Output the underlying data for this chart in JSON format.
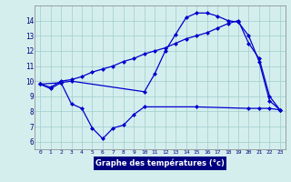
{
  "title": "Graphe des températures (°c)",
  "bg_color": "#d4eeee",
  "line_color": "#0000cc",
  "grid_color": "#a0cccc",
  "ylim_min": 5.5,
  "ylim_max": 15.0,
  "xlim_min": -0.5,
  "xlim_max": 23.5,
  "yticks": [
    6,
    7,
    8,
    9,
    10,
    11,
    12,
    13,
    14
  ],
  "xticks": [
    0,
    1,
    2,
    3,
    4,
    5,
    6,
    7,
    8,
    9,
    10,
    11,
    12,
    13,
    14,
    15,
    16,
    17,
    18,
    19,
    20,
    21,
    22,
    23
  ],
  "line1_x": [
    0,
    2,
    3,
    10,
    11,
    12,
    13,
    14,
    15,
    16,
    17,
    18,
    19,
    20,
    21,
    22,
    23
  ],
  "line1_y": [
    9.8,
    9.9,
    10.0,
    9.3,
    10.5,
    12.0,
    13.1,
    14.2,
    14.5,
    14.5,
    14.3,
    14.0,
    13.9,
    13.0,
    11.3,
    8.7,
    8.1
  ],
  "line2_x": [
    0,
    1,
    2,
    3,
    4,
    5,
    6,
    7,
    8,
    9,
    10,
    11,
    12,
    13,
    14,
    15,
    16,
    17,
    18,
    19,
    20,
    21,
    22,
    23
  ],
  "line2_y": [
    9.8,
    9.6,
    10.0,
    10.1,
    10.3,
    10.6,
    10.8,
    11.0,
    11.3,
    11.5,
    11.8,
    12.0,
    12.2,
    12.5,
    12.8,
    13.0,
    13.2,
    13.5,
    13.8,
    14.0,
    12.5,
    11.5,
    9.0,
    8.1
  ],
  "line3_x": [
    0,
    1,
    2,
    3,
    4,
    5,
    6,
    7,
    8,
    9,
    10,
    15,
    20,
    21,
    22,
    23
  ],
  "line3_y": [
    9.8,
    9.5,
    9.9,
    8.5,
    8.2,
    6.9,
    6.2,
    6.9,
    7.1,
    7.8,
    8.3,
    8.3,
    8.2,
    8.2,
    8.2,
    8.1
  ],
  "xlabel_bg": "#000080",
  "xlabel_fg": "#ffffff"
}
